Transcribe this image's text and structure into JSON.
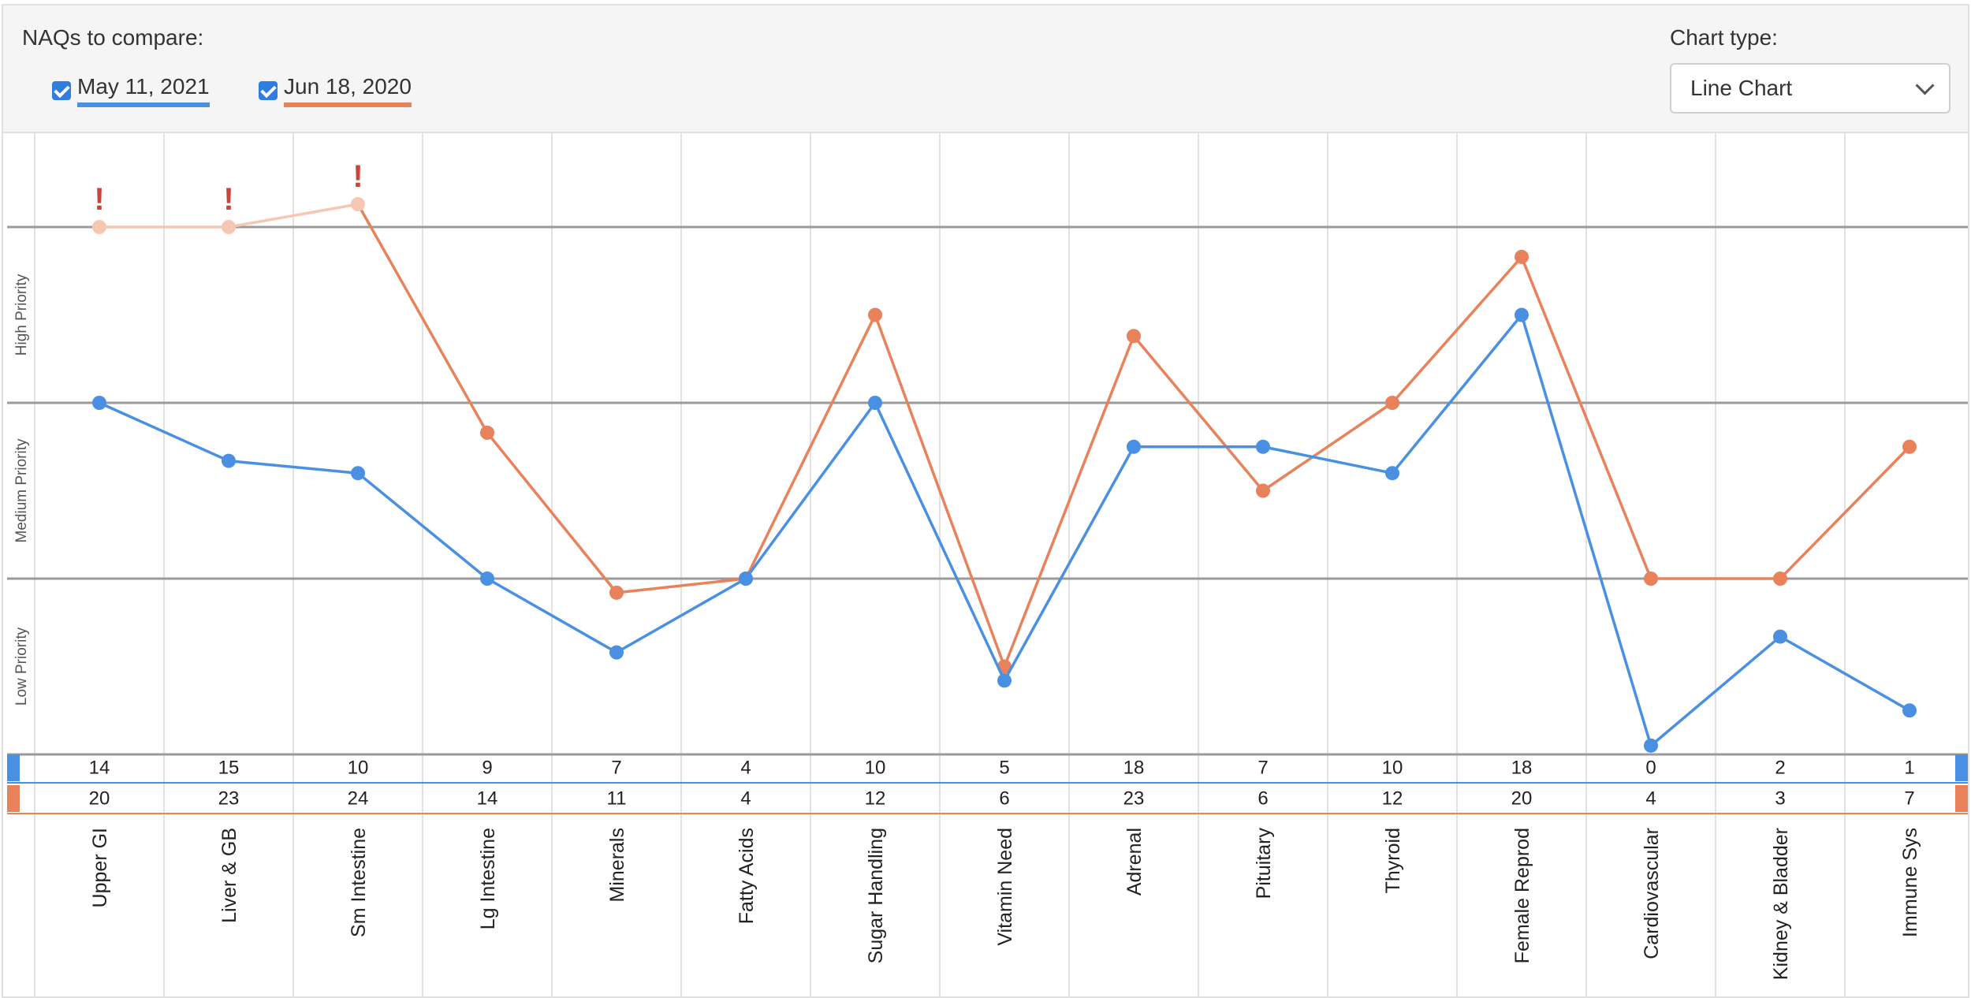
{
  "controls": {
    "compare_label": "NAQs to compare:",
    "chart_type_label": "Chart type:",
    "chart_type_value": "Line Chart"
  },
  "colors": {
    "series1": "#4a90e2",
    "series2": "#e8825a",
    "series2_faded": "#f6c8b4",
    "warning": "#c9443b"
  },
  "chart_data": {
    "type": "line",
    "title": "",
    "xlabel": "",
    "ylabel": "",
    "zones": [
      "Low Priority",
      "Medium Priority",
      "High Priority"
    ],
    "categories": [
      "Upper GI",
      "Liver & GB",
      "Sm Intestine",
      "Lg Intestine",
      "Minerals",
      "Fatty Acids",
      "Sugar Handling",
      "Vitamin Need",
      "Adrenal",
      "Pituitary",
      "Thyroid",
      "Female Reprod",
      "Cardiovascular",
      "Kidney & Bladder",
      "Immune Sys"
    ],
    "series": [
      {
        "name": "May 11, 2021",
        "scores": [
          14,
          15,
          10,
          9,
          7,
          4,
          10,
          5,
          18,
          7,
          10,
          18,
          0,
          2,
          1
        ],
        "levels": [
          2.0,
          1.67,
          1.6,
          1.0,
          0.58,
          1.0,
          2.0,
          0.42,
          1.75,
          1.75,
          1.6,
          2.5,
          0.05,
          0.67,
          0.25
        ]
      },
      {
        "name": "Jun 18, 2020",
        "scores": [
          20,
          23,
          24,
          14,
          11,
          4,
          12,
          6,
          23,
          6,
          12,
          20,
          4,
          3,
          7
        ],
        "levels": [
          3.0,
          3.0,
          3.13,
          1.83,
          0.92,
          1.0,
          2.5,
          0.5,
          2.38,
          1.5,
          2.0,
          2.83,
          1.0,
          1.0,
          1.75
        ]
      }
    ],
    "over_max": [
      0,
      1,
      2
    ],
    "warning_mark": "!",
    "ylim": [
      0,
      3
    ],
    "grid": true,
    "legend": "top-left"
  }
}
